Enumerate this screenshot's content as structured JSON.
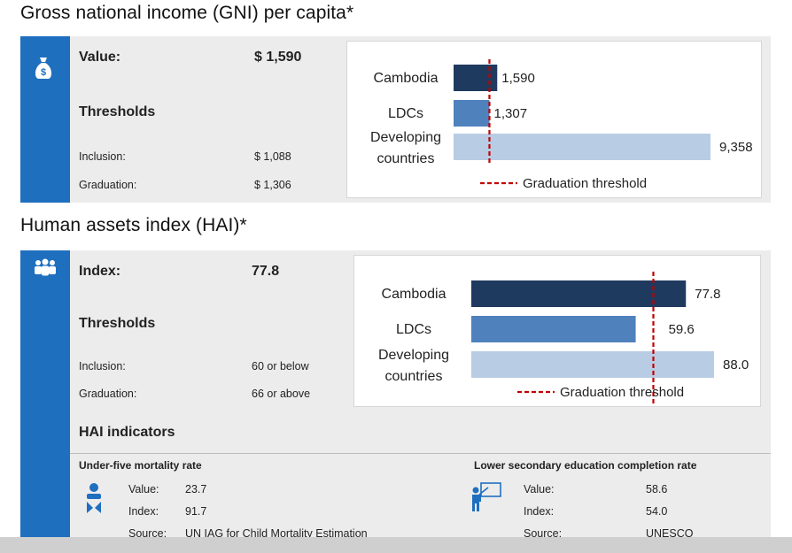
{
  "gni": {
    "title": "Gross national income (GNI) per capita*",
    "value_label": "Value:",
    "value": "$ 1,590",
    "thresholds_label": "Thresholds",
    "inclusion_label": "Inclusion:",
    "inclusion_value": "$ 1,088",
    "graduation_label": "Graduation:",
    "graduation_value": "$ 1,306",
    "icon": "money-bag-icon"
  },
  "hai": {
    "title": "Human assets index (HAI)*",
    "index_label": "Index:",
    "index_value": "77.8",
    "thresholds_label": "Thresholds",
    "inclusion_label": "Inclusion:",
    "inclusion_value": "60 or below",
    "graduation_label": "Graduation:",
    "graduation_value": "66 or above",
    "icon": "people-group-icon",
    "indicators_title": "HAI indicators",
    "indicators": [
      {
        "name": "Under-five mortality rate",
        "icon": "child-icon",
        "value_label": "Value:",
        "value": "23.7",
        "index_label": "Index:",
        "index": "91.7",
        "source_label": "Source:",
        "source": "UN IAG for Child Mortality Estimation"
      },
      {
        "name": "Lower secondary education completion rate",
        "icon": "teacher-icon",
        "value_label": "Value:",
        "value": "58.6",
        "index_label": "Index:",
        "index": "54.0",
        "source_label": "Source:",
        "source": "UNESCO"
      }
    ]
  },
  "colors": {
    "side_bar": "#1f6fbf",
    "bar_dark": "#1f3a5f",
    "bar_mid": "#4f81bd",
    "bar_light": "#b8cce4",
    "threshold": "#c00000"
  },
  "chart_data": [
    {
      "type": "bar",
      "orientation": "horizontal",
      "categories": [
        "Cambodia",
        "LDCs",
        "Developing countries"
      ],
      "values": [
        1590,
        1307,
        9358
      ],
      "value_labels": [
        "1,590",
        "1,307",
        "9,358"
      ],
      "threshold": 1306,
      "threshold_label": "Graduation threshold"
    },
    {
      "type": "bar",
      "orientation": "horizontal",
      "categories": [
        "Cambodia",
        "LDCs",
        "Developing countries"
      ],
      "values": [
        77.8,
        59.6,
        88.0
      ],
      "value_labels": [
        "77.8",
        "59.6",
        "88.0"
      ],
      "threshold": 66,
      "threshold_label": "Graduation threshold"
    }
  ]
}
